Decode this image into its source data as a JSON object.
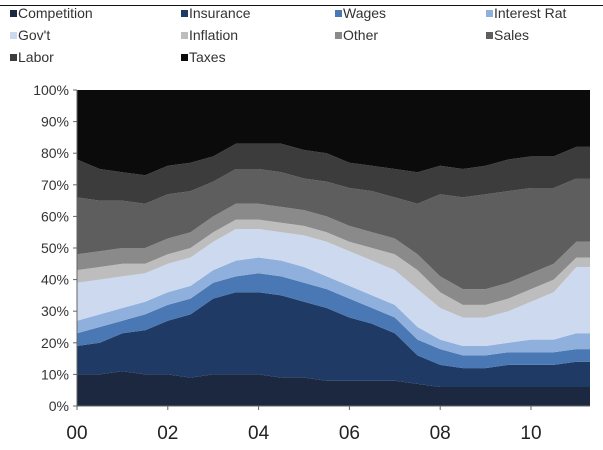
{
  "chart_data": {
    "type": "area",
    "stacked": true,
    "percent": true,
    "title": "",
    "xlabel": "",
    "ylabel": "",
    "xlim": [
      2000,
      2011.3
    ],
    "ylim": [
      0,
      100
    ],
    "grid": false,
    "legend_position": "top",
    "x_tick_labels": [
      "00",
      "02",
      "04",
      "06",
      "08",
      "10"
    ],
    "x_ticks": [
      2000,
      2002,
      2004,
      2006,
      2008,
      2010
    ],
    "y_tick_labels": [
      "0%",
      "10%",
      "20%",
      "30%",
      "40%",
      "50%",
      "60%",
      "70%",
      "80%",
      "90%",
      "100%"
    ],
    "y_ticks": [
      0,
      10,
      20,
      30,
      40,
      50,
      60,
      70,
      80,
      90,
      100
    ],
    "x": [
      2000.0,
      2000.5,
      2001.0,
      2001.5,
      2002.0,
      2002.5,
      2003.0,
      2003.5,
      2004.0,
      2004.5,
      2005.0,
      2005.5,
      2006.0,
      2006.5,
      2007.0,
      2007.5,
      2008.0,
      2008.5,
      2009.0,
      2009.5,
      2010.0,
      2010.5,
      2011.0
    ],
    "series": [
      {
        "name": "Competition",
        "color": "#1b2840",
        "values": [
          10,
          10,
          11,
          10,
          10,
          9,
          10,
          10,
          10,
          9,
          9,
          8,
          8,
          8,
          8,
          7,
          6,
          6,
          6,
          6,
          6,
          6,
          6
        ]
      },
      {
        "name": "Insurance",
        "color": "#1f3a64",
        "values": [
          9,
          10,
          12,
          14,
          17,
          20,
          24,
          26,
          26,
          26,
          24,
          23,
          20,
          18,
          15,
          9,
          7,
          6,
          6,
          7,
          7,
          7,
          8
        ]
      },
      {
        "name": "Wages",
        "color": "#4a78b4",
        "values": [
          4,
          5,
          4,
          5,
          5,
          5,
          5,
          5,
          6,
          6,
          6,
          6,
          6,
          5,
          5,
          5,
          5,
          4,
          4,
          4,
          4,
          4,
          4
        ]
      },
      {
        "name": "Interest Rat",
        "color": "#8fb0dc",
        "values": [
          4,
          4,
          4,
          4,
          4,
          4,
          4,
          5,
          5,
          5,
          5,
          4,
          4,
          4,
          4,
          4,
          3,
          3,
          3,
          3,
          4,
          4,
          5
        ]
      },
      {
        "name": "Gov't",
        "color": "#cdd9ee",
        "values": [
          12,
          11,
          10,
          9,
          9,
          9,
          9,
          10,
          9,
          9,
          10,
          11,
          11,
          11,
          11,
          12,
          10,
          9,
          9,
          10,
          12,
          15,
          21
        ]
      },
      {
        "name": "Inflation",
        "color": "#bdbdbd",
        "values": [
          4,
          4,
          4,
          3,
          3,
          3,
          3,
          3,
          3,
          3,
          3,
          3,
          3,
          4,
          5,
          6,
          5,
          4,
          4,
          4,
          4,
          4,
          3
        ]
      },
      {
        "name": "Other",
        "color": "#8a8a8a",
        "values": [
          5,
          5,
          5,
          5,
          5,
          5,
          5,
          5,
          5,
          5,
          5,
          5,
          5,
          5,
          5,
          5,
          5,
          5,
          5,
          5,
          5,
          5,
          5
        ]
      },
      {
        "name": "Sales",
        "color": "#5e5e5e",
        "values": [
          18,
          16,
          15,
          14,
          14,
          13,
          11,
          11,
          11,
          11,
          10,
          11,
          12,
          13,
          13,
          16,
          26,
          29,
          30,
          29,
          27,
          24,
          20
        ]
      },
      {
        "name": "Labor",
        "color": "#3c3c3c",
        "values": [
          12,
          10,
          9,
          9,
          9,
          9,
          8,
          8,
          8,
          9,
          9,
          9,
          8,
          8,
          9,
          10,
          9,
          9,
          9,
          10,
          10,
          10,
          10
        ]
      },
      {
        "name": "Taxes",
        "color": "#0b0b0b",
        "values": [
          22,
          25,
          26,
          27,
          24,
          23,
          21,
          17,
          17,
          17,
          19,
          20,
          23,
          24,
          25,
          26,
          24,
          25,
          24,
          22,
          21,
          21,
          18
        ]
      }
    ]
  }
}
